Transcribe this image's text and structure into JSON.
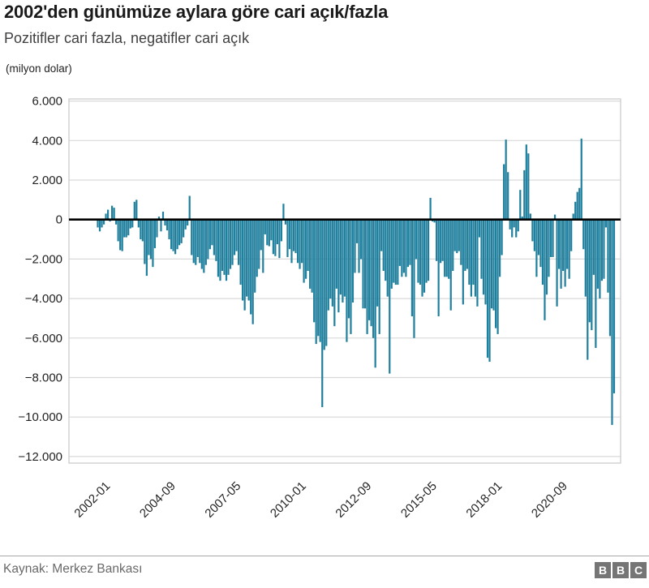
{
  "header": {
    "title": "2002'den günümüze aylara göre cari açık/fazla",
    "subtitle": "Pozitifler cari fazla, negatifler cari açık"
  },
  "footer": {
    "source": "Kaynak: Merkez Bankası",
    "logo_letters": [
      "B",
      "B",
      "C"
    ]
  },
  "colors": {
    "bar": "#1f7f9d",
    "zero_line": "#000000",
    "grid": "#d9d9d9",
    "spine": "#cccccc",
    "axis_text": "#222222",
    "title_text": "#1a1a1a",
    "subtitle_text": "#404043",
    "source_text": "#696969",
    "logo_block": "#757575"
  },
  "chart_data": {
    "type": "bar",
    "title": "2002'den günümüze aylara göre cari açık/fazla",
    "subtitle": "Pozitifler cari fazla, negatifler cari açık",
    "unit_label": "(milyon dolar)",
    "xlabel": "",
    "ylabel": "milyon dolar",
    "start_month": "2002-01",
    "end_month": "2023-02",
    "ylim": [
      -12000,
      6000
    ],
    "grid": true,
    "legend": "none",
    "x_tick_labels": [
      "2002-01",
      "2004-09",
      "2007-05",
      "2010-01",
      "2012-09",
      "2015-05",
      "2018-01",
      "2020-09"
    ],
    "x_tick_month_indices": [
      0,
      32,
      64,
      96,
      128,
      160,
      192,
      224
    ],
    "y_tick_labels": [
      "6.000",
      "4.000",
      "2.000",
      "0",
      "−2.000",
      "−4.000",
      "−6.000",
      "−8.000",
      "−10.000",
      "−12.000"
    ],
    "y_tick_values": [
      6000,
      4000,
      2000,
      0,
      -2000,
      -4000,
      -6000,
      -8000,
      -10000,
      -12000
    ],
    "values": [
      -400,
      -600,
      -400,
      -250,
      300,
      500,
      -100,
      700,
      600,
      -250,
      -1100,
      -1550,
      -1600,
      -900,
      -900,
      -800,
      -450,
      -400,
      900,
      1000,
      -400,
      -1000,
      -1100,
      -2250,
      -2850,
      -1800,
      -2000,
      -2400,
      -1450,
      -900,
      150,
      -600,
      400,
      -300,
      -550,
      -1000,
      -1500,
      -1600,
      -1750,
      -1500,
      -1300,
      -1200,
      -900,
      -500,
      -300,
      1200,
      -1800,
      -2200,
      -2300,
      -1900,
      -2200,
      -2500,
      -2700,
      -2300,
      -2000,
      -1500,
      -1300,
      -1800,
      -2100,
      -2900,
      -3100,
      -2600,
      -2800,
      -3100,
      -2800,
      -2500,
      -2300,
      -1800,
      -1600,
      -2300,
      -3300,
      -4100,
      -4600,
      -3900,
      -4100,
      -4800,
      -5300,
      -3700,
      -2900,
      -2500,
      -1550,
      -2700,
      -750,
      -1300,
      -1350,
      -1050,
      -1750,
      -1850,
      -1250,
      -1950,
      -1100,
      800,
      -250,
      -1900,
      -1500,
      -2200,
      -1600,
      -1700,
      -2200,
      -2500,
      -2200,
      -3200,
      -3000,
      -2600,
      -3500,
      -3700,
      -5200,
      -6300,
      -5900,
      -6200,
      -9500,
      -6600,
      -6400,
      -4600,
      -4000,
      -4400,
      -5400,
      -3500,
      -4700,
      -3800,
      -4200,
      -3900,
      -6200,
      -5000,
      -5800,
      -4200,
      -2700,
      -1200,
      -2700,
      -2000,
      -4500,
      -4500,
      -5800,
      -5100,
      -5400,
      -6000,
      -7500,
      -4400,
      -5800,
      -1600,
      -2600,
      -3100,
      -3900,
      -7800,
      -3500,
      -3200,
      -3300,
      -3300,
      -2350,
      -2900,
      -2700,
      -2900,
      -2400,
      -2300,
      -4900,
      -6000,
      -2000,
      -3200,
      -3300,
      -3900,
      -3700,
      -3200,
      -3100,
      1100,
      -100,
      -150,
      -2100,
      -4900,
      -2200,
      -2100,
      -2900,
      -2900,
      -3000,
      -4600,
      -2600,
      -1600,
      -1700,
      -1600,
      -2300,
      -4300,
      -2600,
      -2500,
      -3300,
      -3900,
      -3300,
      -3900,
      -4400,
      -900,
      -3000,
      -3800,
      -4300,
      -7000,
      -7200,
      -4500,
      -4600,
      -5500,
      -5800,
      -2900,
      -1800,
      2800,
      4050,
      2400,
      -500,
      -900,
      -400,
      -900,
      -600,
      1500,
      150,
      2500,
      3800,
      3350,
      300,
      -1100,
      -1600,
      -2900,
      -1800,
      -2400,
      -3300,
      -5100,
      -3800,
      -2900,
      -1900,
      -1900,
      250,
      -4400,
      -2500,
      -3500,
      -2600,
      -3400,
      -2500,
      -3000,
      -1600,
      300,
      900,
      1400,
      1600,
      4100,
      -1500,
      -3900,
      -7100,
      -5200,
      -5600,
      -2800,
      -6500,
      -3500,
      -4000,
      -3100,
      -3000,
      -400,
      -3700,
      -5900,
      -10400,
      -8800
    ],
    "source": "Kaynak: Merkez Bankası"
  }
}
